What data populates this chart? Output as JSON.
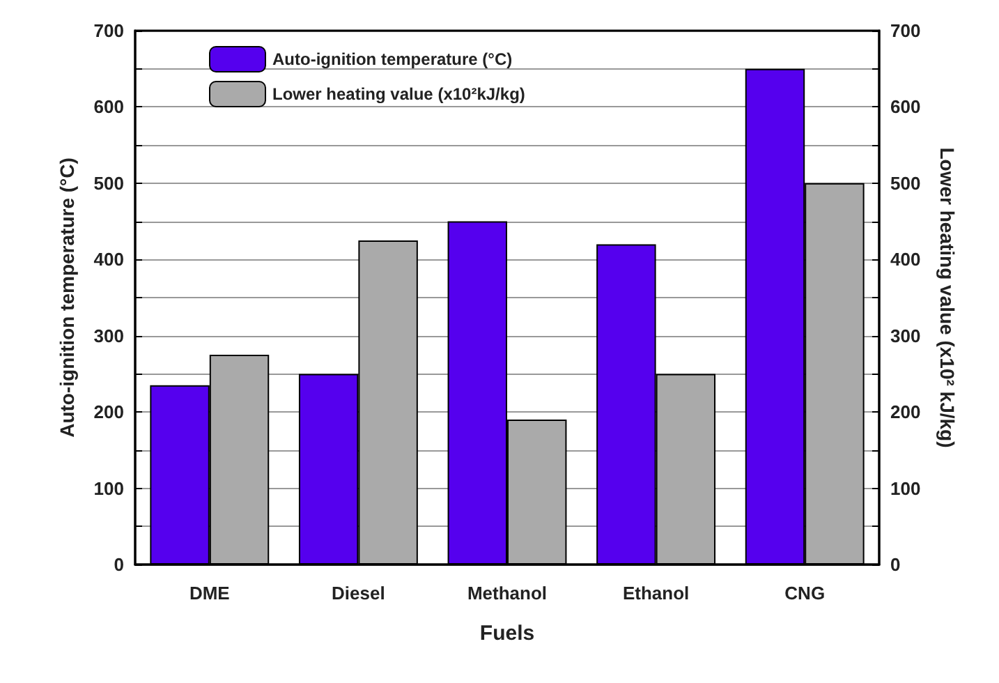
{
  "chart_data": {
    "type": "bar",
    "xlabel": "Fuels",
    "ylabel": "Auto-ignition temperature (°C)",
    "y2label": "Lower heating value (x10² kJ/kg)",
    "categories": [
      "DME",
      "Diesel",
      "Methanol",
      "Ethanol",
      "CNG"
    ],
    "series": [
      {
        "name": "Auto-ignition temperature (°C)",
        "color": "#5500ee",
        "values": [
          235,
          250,
          450,
          420,
          650
        ]
      },
      {
        "name": "Lower heating value (x10²kJ/kg)",
        "color": "#aaaaaa",
        "values": [
          275,
          425,
          190,
          250,
          500
        ],
        "axis": "y2"
      }
    ],
    "ylim": [
      0,
      700
    ],
    "yticks": [
      0,
      {
        "value": 50,
        "label": null
      },
      100,
      {
        "value": 150,
        "label": null
      },
      200,
      {
        "value": 250,
        "label": null
      },
      300,
      {
        "value": 350,
        "label": null
      },
      400,
      {
        "value": 450,
        "label": null
      },
      500,
      {
        "value": 550,
        "label": null
      },
      600,
      {
        "value": 650,
        "label": null
      },
      700
    ],
    "y2lim": [
      0,
      700
    ],
    "y2ticks": [
      0,
      {
        "value": 50,
        "label": null
      },
      100,
      {
        "value": 150,
        "label": null
      },
      200,
      {
        "value": 250,
        "label": null
      },
      300,
      {
        "value": 350,
        "label": null
      },
      400,
      {
        "value": 450,
        "label": null
      },
      500,
      {
        "value": 550,
        "label": null
      },
      600,
      {
        "value": 650,
        "label": null
      },
      700
    ],
    "grid": "y",
    "legend": "top left"
  }
}
